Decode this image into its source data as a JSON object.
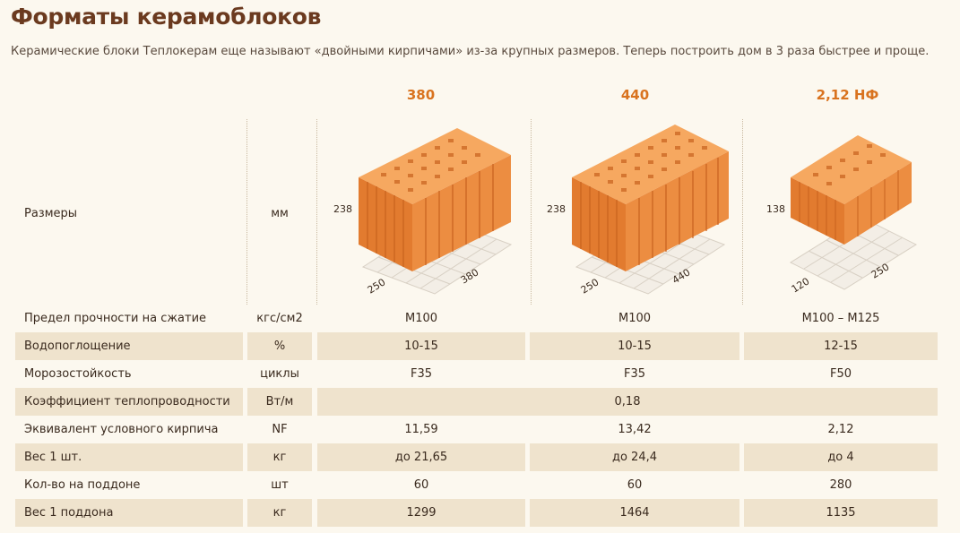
{
  "title": "Форматы керамоблоков",
  "subtitle": "Керамические блоки Теплокерам еще называют «двойными кирпичами» из-за крупных размеров. Теперь построить дом в 3 раза быстрее и проще.",
  "columns": [
    "380",
    "440",
    "2,12 НФ"
  ],
  "sizes_row": {
    "label": "Размеры",
    "unit": "мм",
    "blocks": [
      {
        "height": "238",
        "depth": "250",
        "length": "380"
      },
      {
        "height": "238",
        "depth": "250",
        "length": "440"
      },
      {
        "height": "138",
        "depth": "120",
        "length": "250"
      }
    ]
  },
  "rows": [
    {
      "label": "Предел прочности на сжатие",
      "unit": "кгс/см2",
      "v1": "М100",
      "v2": "М100",
      "v3": "М100 – М125"
    },
    {
      "label": "Водопоглощение",
      "unit": "%",
      "v1": "10-15",
      "v2": "10-15",
      "v3": "12-15"
    },
    {
      "label": "Морозостойкость",
      "unit": "циклы",
      "v1": "F35",
      "v2": "F35",
      "v3": "F50"
    },
    {
      "label": "Коэффициент теплопроводности",
      "unit": "Вт/м",
      "span": "0,18"
    },
    {
      "label": "Эквивалент условного кирпича",
      "unit": "NF",
      "v1": "11,59",
      "v2": "13,42",
      "v3": "2,12"
    },
    {
      "label": "Вес 1 шт.",
      "unit": "кг",
      "v1": "до 21,65",
      "v2": "до 24,4",
      "v3": "до 4"
    },
    {
      "label": "Кол-во на поддоне",
      "unit": "шт",
      "v1": "60",
      "v2": "60",
      "v3": "280"
    },
    {
      "label": "Вес 1 поддона",
      "unit": "кг",
      "v1": "1299",
      "v2": "1464",
      "v3": "1135"
    }
  ],
  "colors": {
    "accent": "#d9731f",
    "title": "#6b3a1f",
    "shade": "#efe3cd",
    "brick": "#e8863a"
  }
}
